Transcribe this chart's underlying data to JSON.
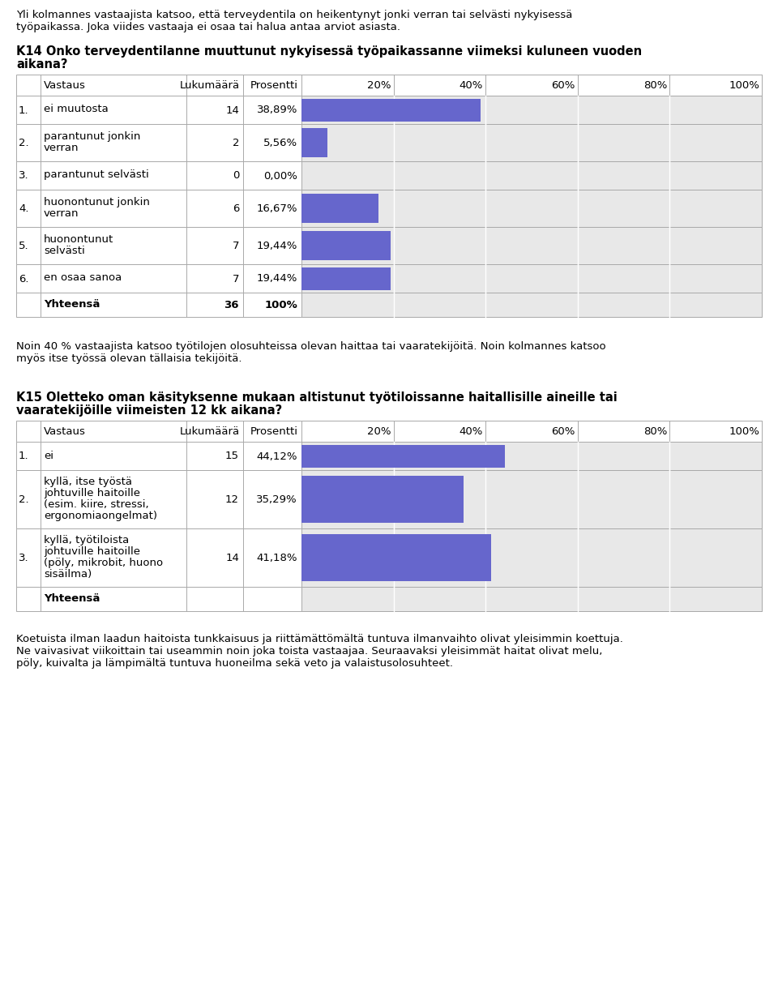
{
  "intro_text": "Yli kolmannes vastaajista katsoo, että terveydentila on heikentynyt jonki verran tai selvästi nykyisessä\ntyöpaikassa. Joka viides vastaaja ei osaa tai halua antaa arviot asiasta.",
  "q14_title_line1": "K14 Onko terveydentilanne muuttunut nykyisessä työpaikassanne viimeksi kuluneen vuoden",
  "q14_title_line2": "aikana?",
  "q14_rows": [
    {
      "num": "1.",
      "label": "ei muutosta",
      "count": "14",
      "pct": "38,89%",
      "value": 38.89,
      "lines": 1
    },
    {
      "num": "2.",
      "label": "parantunut jonkin\nverran",
      "count": "2",
      "pct": "5,56%",
      "value": 5.56,
      "lines": 2
    },
    {
      "num": "3.",
      "label": "parantunut selvästi",
      "count": "0",
      "pct": "0,00%",
      "value": 0.0,
      "lines": 1
    },
    {
      "num": "4.",
      "label": "huonontunut jonkin\nverran",
      "count": "6",
      "pct": "16,67%",
      "value": 16.67,
      "lines": 2
    },
    {
      "num": "5.",
      "label": "huonontunut\nselvästi",
      "count": "7",
      "pct": "19,44%",
      "value": 19.44,
      "lines": 2
    },
    {
      "num": "6.",
      "label": "en osaa sanoa",
      "count": "7",
      "pct": "19,44%",
      "value": 19.44,
      "lines": 1
    }
  ],
  "q14_total": {
    "label": "Yhteensä",
    "count": "36",
    "pct": "100%"
  },
  "middle_text": "Noin 40 % vastaajista katsoo työtilojen olosuhteissa olevan haittaa tai vaaratekijöitä. Noin kolmannes katsoo\nmyös itse työssä olevan tällaisia tekijöitä.",
  "q15_title_line1": "K15 Oletteko oman käsityksenne mukaan altistunut työtiloissanne haitallisille aineille tai",
  "q15_title_line2": "vaaratekijöille viimeisten 12 kk aikana?",
  "q15_rows": [
    {
      "num": "1.",
      "label": "ei",
      "count": "15",
      "pct": "44,12%",
      "value": 44.12,
      "lines": 1
    },
    {
      "num": "2.",
      "label": "kyllä, itse työstä\njohtuville haitoille\n(esim. kiire, stressi,\nergonomiaongelmat)",
      "count": "12",
      "pct": "35,29%",
      "value": 35.29,
      "lines": 4
    },
    {
      "num": "3.",
      "label": "kyllä, työtiloista\njohtuville haitoille\n(pöly, mikrobit, huono\nsisäilma)",
      "count": "14",
      "pct": "41,18%",
      "value": 41.18,
      "lines": 4
    }
  ],
  "q15_total": {
    "label": "Yhteensä",
    "count": "",
    "pct": ""
  },
  "outro_text": "Koetuista ilman laadun haitoista tunkkaisuus ja riittämättömältä tuntuva ilmanvaihto olivat yleisimmin koettuja.\nNe vaivasivat viikoittain tai useammin noin joka toista vastaajaa. Seuraavaksi yleisimmät haitat olivat melu,\npöly, kuivalta ja lämpimältä tuntuva huoneilma sekä veto ja valaistusolosuhteet.",
  "bar_color": "#6666cc",
  "bar_bg_color": "#e8e8e8",
  "border_color": "#aaaaaa",
  "text_color": "#000000"
}
